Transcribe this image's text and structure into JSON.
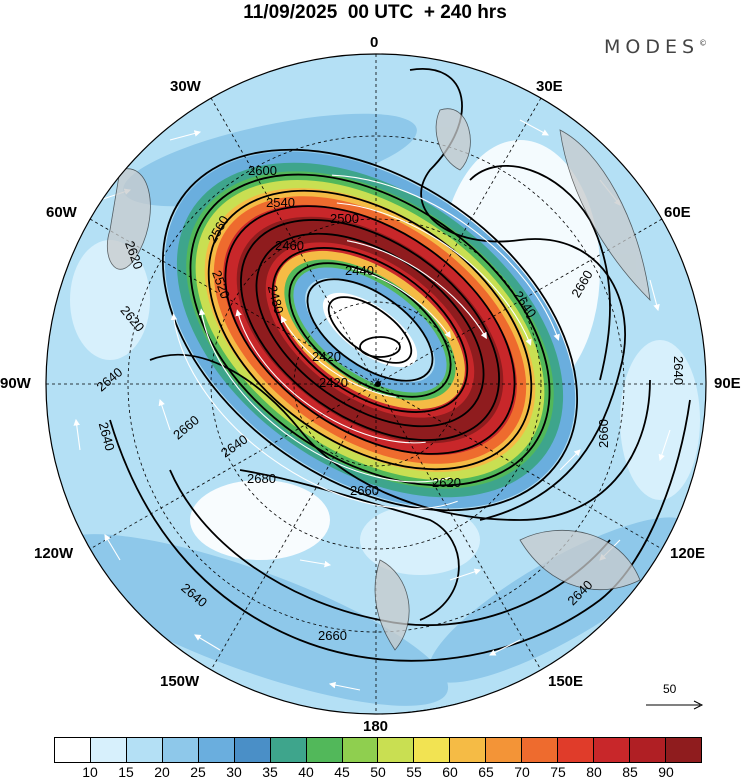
{
  "header": {
    "title": "11/09/2025  00 UTC  + 240 hrs",
    "brand": "MODES"
  },
  "longitude_labels": {
    "lon_0": "0",
    "lon_30e": "30E",
    "lon_60e": "60E",
    "lon_90e": "90E",
    "lon_120e": "120E",
    "lon_150e": "150E",
    "lon_180": "180",
    "lon_150w": "150W",
    "lon_120w": "120W",
    "lon_90w": "90W",
    "lon_60w": "60W",
    "lon_30w": "30W"
  },
  "contours": {
    "c2600": "2600",
    "c2540": "2540",
    "c2560": "2560",
    "c2620a": "2620",
    "c2460": "2460",
    "c2440": "2440",
    "c2420": "2420",
    "c2420b": "2420",
    "c2640a": "2640",
    "c2660a": "2660",
    "c2640b": "2640",
    "c2640c": "2640",
    "c2660b": "2660",
    "c2680": "2680",
    "c2660c": "2660",
    "c2620b": "2620",
    "c2660d": "2660",
    "c2640d": "2640",
    "c2660e": "2660",
    "c2640e": "2640",
    "c2640f": "2640",
    "c2620c": "2620",
    "c2640g": "2640",
    "c2520": "2520",
    "c2500": "2500",
    "c2480": "2480"
  },
  "reference_vector": {
    "value": "50"
  },
  "colorbar": {
    "colors": [
      "#ffffff",
      "#d7f0fc",
      "#b4e0f5",
      "#8ec8ea",
      "#6aaede",
      "#4a8fc7",
      "#3ea58c",
      "#52b85a",
      "#8fcf4f",
      "#c9df52",
      "#f2e352",
      "#f5bb45",
      "#f39437",
      "#ee6b2e",
      "#e03c2a",
      "#c8272a",
      "#b01f24",
      "#8f1c1e"
    ],
    "ticks": [
      "10",
      "15",
      "20",
      "25",
      "30",
      "35",
      "40",
      "45",
      "50",
      "55",
      "60",
      "65",
      "70",
      "75",
      "80",
      "85",
      "90"
    ]
  }
}
